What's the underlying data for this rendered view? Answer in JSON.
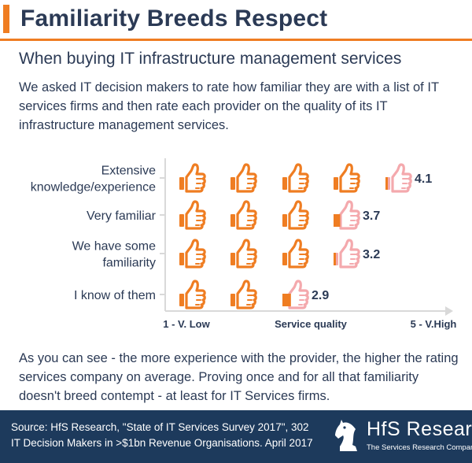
{
  "title": "Familiarity Breeds Respect",
  "subtitle": "When buying IT infrastructure management services",
  "intro": "We asked IT decision makers to rate how familiar they are with a list of IT services firms and then rate each provider on the quality of its IT infrastructure management services.",
  "conclusion": "As you can see - the more experience with the provider, the higher the rating services company on average. Proving once and for all that familiarity doesn't breed contempt - at least for IT Services firms.",
  "footer": {
    "source": "Source: HfS Research, \"State of IT Services Survey 2017\", 302 IT Decision Makers in >$1bn Revenue Organisations. April 2017",
    "logo_name": "HfS Research",
    "logo_tagline": "The Services Research Company"
  },
  "colors": {
    "accent": "#ef7d22",
    "navy": "#1d3a5c",
    "text": "#2b3a55",
    "faded_icon": "#f4a9ad"
  },
  "icon": "thumbs-up-icon",
  "chart_data": {
    "type": "pictograph",
    "categories": [
      [
        "Extensive",
        "knowledge/experience"
      ],
      [
        "Very familiar"
      ],
      [
        "We have some",
        "familiarity"
      ],
      [
        "I know of them"
      ]
    ],
    "values": [
      4.1,
      3.7,
      3.2,
      2.9
    ],
    "value_labels": [
      "4.1",
      "3.7",
      "3.2",
      "2.9"
    ],
    "xlabel": "Service quality",
    "x_min_label": "1 - V. Low",
    "x_max_label": "5 - V.High",
    "xlim": [
      1,
      5
    ]
  }
}
